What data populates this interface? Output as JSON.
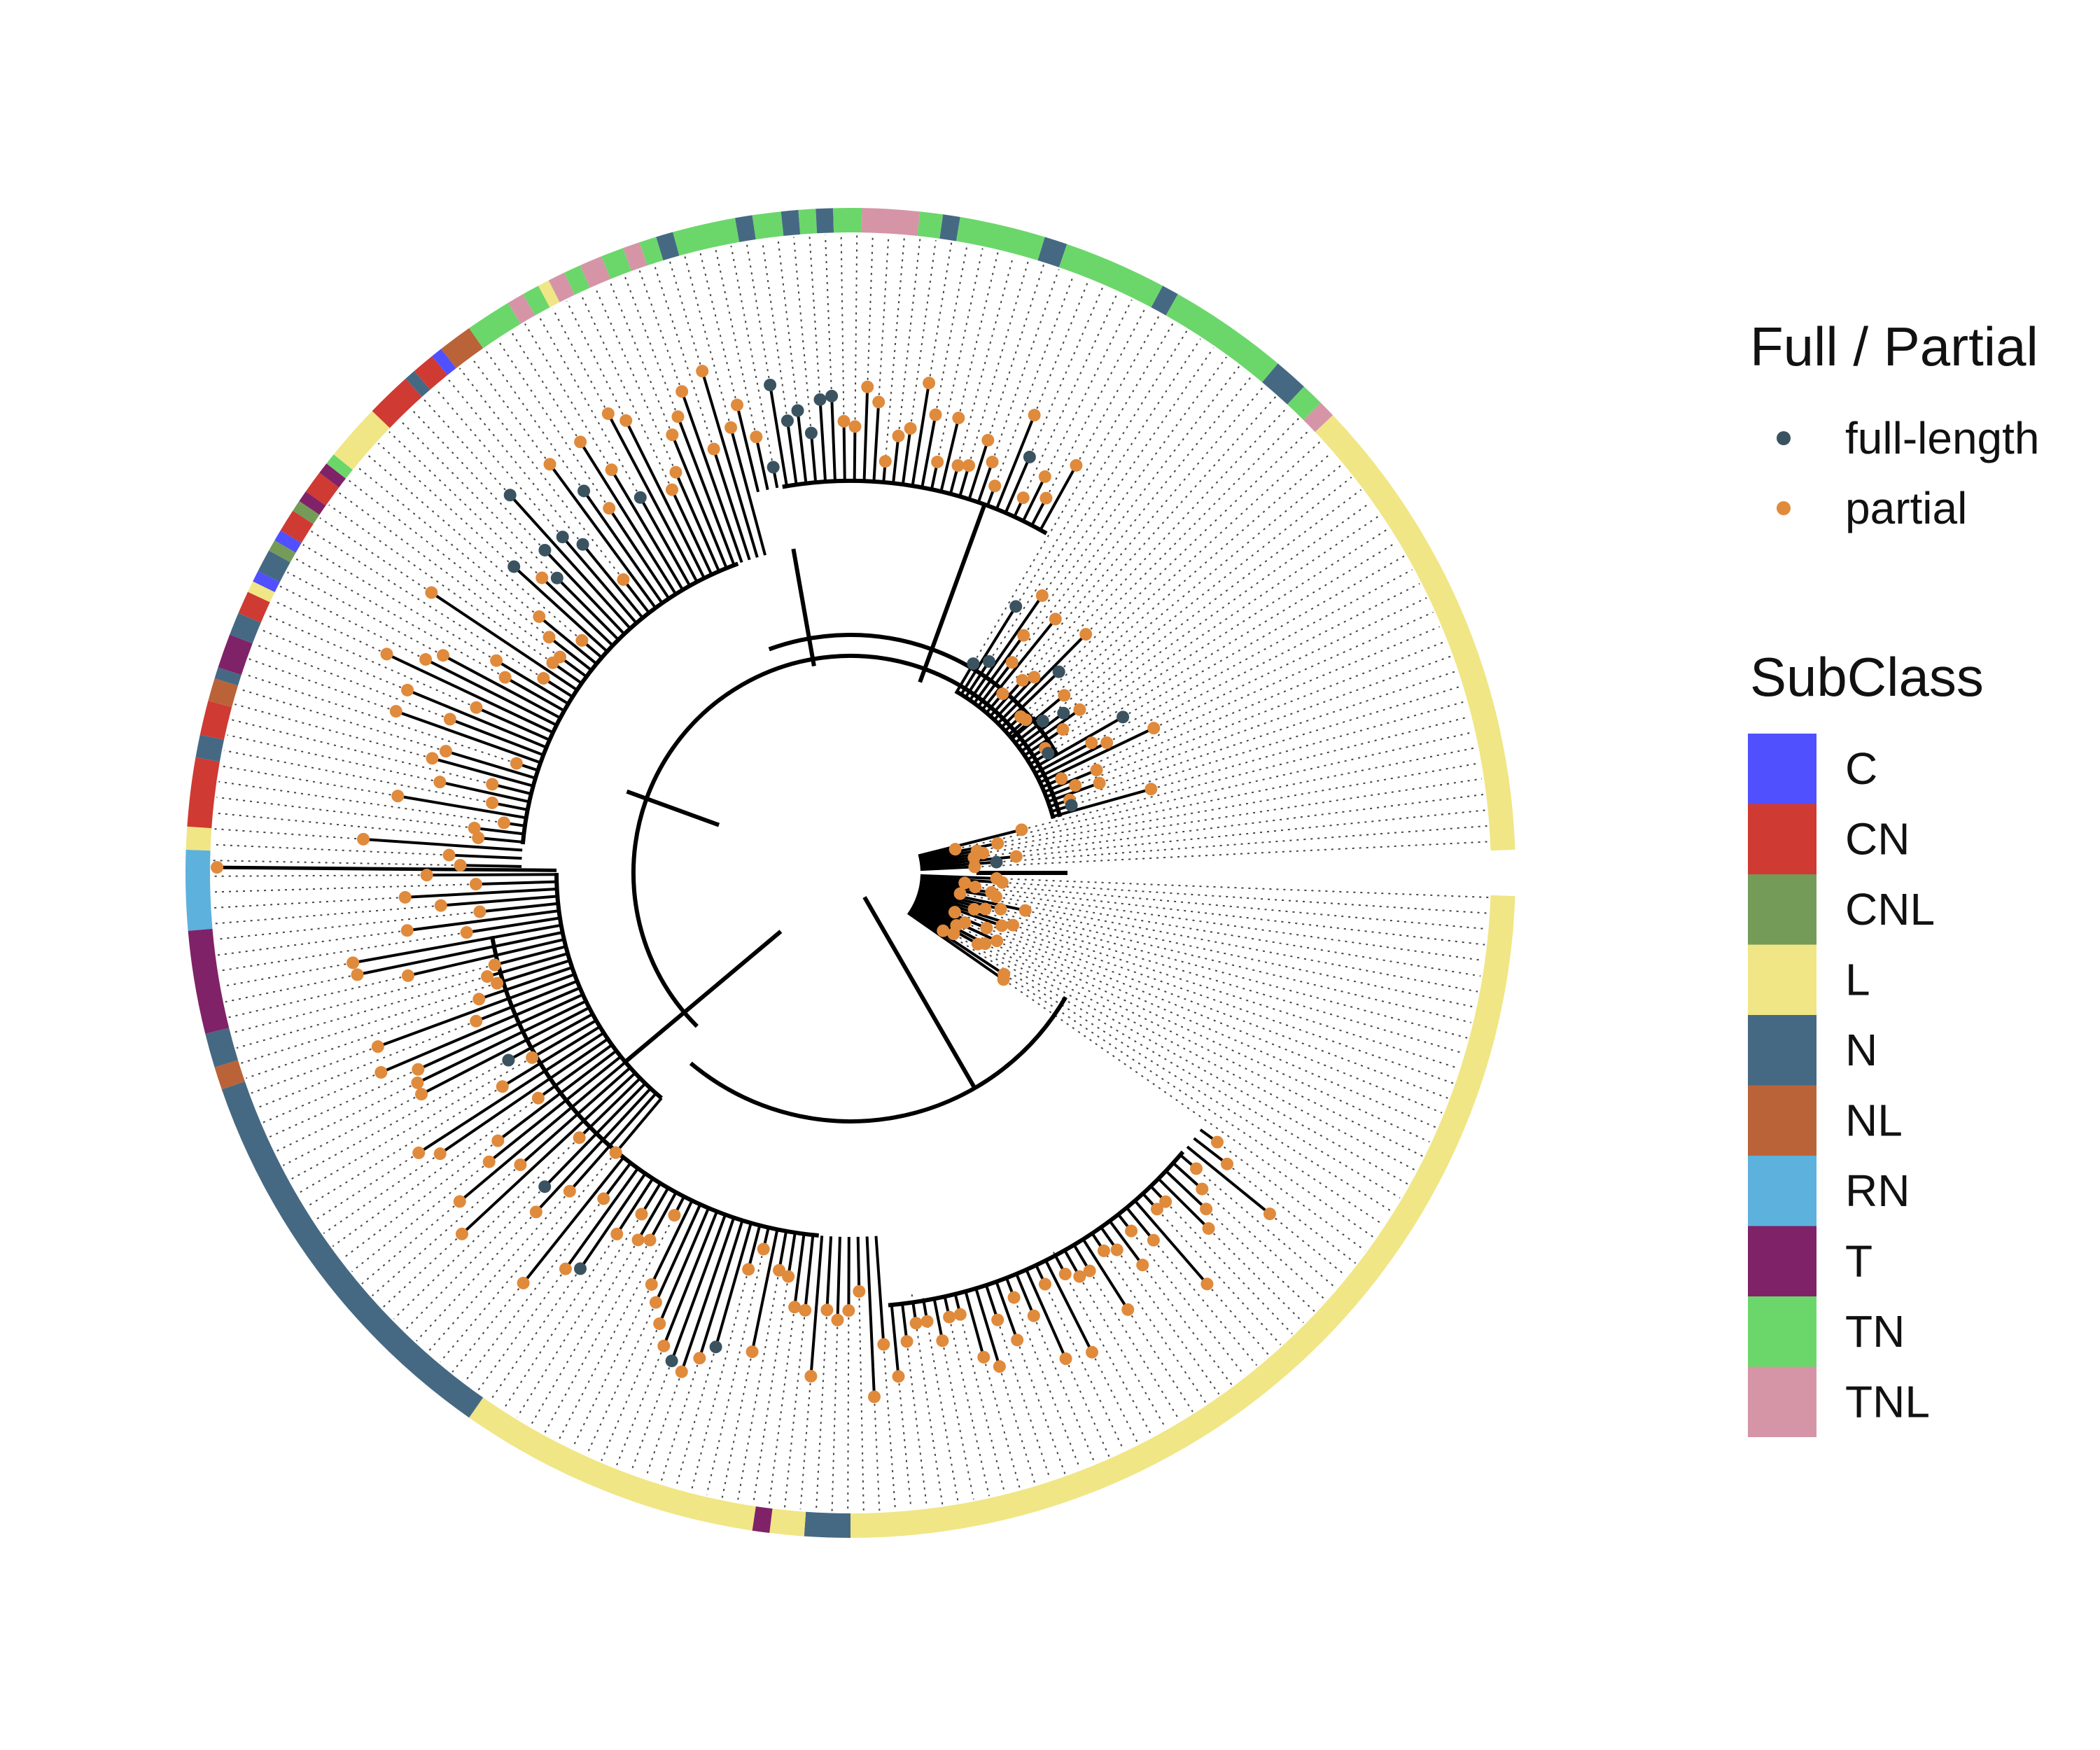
{
  "legend_full_partial": {
    "title": "Full / Partial",
    "items": [
      {
        "label": "full-length",
        "color": "#3b5360"
      },
      {
        "label": "partial",
        "color": "#e08a3c"
      }
    ]
  },
  "legend_subclass": {
    "title": "SubClass",
    "items": [
      {
        "label": "C",
        "color": "#5050ff"
      },
      {
        "label": "CN",
        "color": "#cf3a33"
      },
      {
        "label": "CNL",
        "color": "#749b58"
      },
      {
        "label": "L",
        "color": "#f0e685"
      },
      {
        "label": "N",
        "color": "#466983"
      },
      {
        "label": "NL",
        "color": "#ba6338"
      },
      {
        "label": "RN",
        "color": "#5db1dd"
      },
      {
        "label": "T",
        "color": "#802268"
      },
      {
        "label": "TN",
        "color": "#6bd76b"
      },
      {
        "label": "TNL",
        "color": "#d595a7"
      }
    ]
  },
  "ring_segments": [
    {
      "from": 2,
      "to": 90,
      "subclass": "L"
    },
    {
      "from": 90,
      "to": 94,
      "subclass": "N"
    },
    {
      "from": 94,
      "to": 97,
      "subclass": "L"
    },
    {
      "from": 97,
      "to": 98.5,
      "subclass": "T"
    },
    {
      "from": 98.5,
      "to": 125,
      "subclass": "L"
    },
    {
      "from": 125,
      "to": 161,
      "subclass": "N"
    },
    {
      "from": 161,
      "to": 163,
      "subclass": "NL"
    },
    {
      "from": 163,
      "to": 166,
      "subclass": "N"
    },
    {
      "from": 166,
      "to": 175,
      "subclass": "T"
    },
    {
      "from": 175,
      "to": 182,
      "subclass": "RN"
    },
    {
      "from": 182,
      "to": 184,
      "subclass": "L"
    },
    {
      "from": 184,
      "to": 190,
      "subclass": "CN"
    },
    {
      "from": 190,
      "to": 192,
      "subclass": "N"
    },
    {
      "from": 192,
      "to": 195,
      "subclass": "CN"
    },
    {
      "from": 195,
      "to": 197,
      "subclass": "NL"
    },
    {
      "from": 197,
      "to": 198,
      "subclass": "N"
    },
    {
      "from": 198,
      "to": 201,
      "subclass": "T"
    },
    {
      "from": 201,
      "to": 203,
      "subclass": "N"
    },
    {
      "from": 203,
      "to": 205,
      "subclass": "CN"
    },
    {
      "from": 205,
      "to": 206,
      "subclass": "L"
    },
    {
      "from": 206,
      "to": 207,
      "subclass": "C"
    },
    {
      "from": 207,
      "to": 209,
      "subclass": "N"
    },
    {
      "from": 209,
      "to": 210,
      "subclass": "CNL"
    },
    {
      "from": 210,
      "to": 211,
      "subclass": "C"
    },
    {
      "from": 211,
      "to": 213,
      "subclass": "CN"
    },
    {
      "from": 213,
      "to": 214,
      "subclass": "CNL"
    },
    {
      "from": 214,
      "to": 215,
      "subclass": "T"
    },
    {
      "from": 215,
      "to": 217,
      "subclass": "CN"
    },
    {
      "from": 217,
      "to": 218,
      "subclass": "T"
    },
    {
      "from": 218,
      "to": 219,
      "subclass": "TN"
    },
    {
      "from": 219,
      "to": 224,
      "subclass": "L"
    },
    {
      "from": 224,
      "to": 228,
      "subclass": "CN"
    },
    {
      "from": 228,
      "to": 229,
      "subclass": "N"
    },
    {
      "from": 229,
      "to": 231,
      "subclass": "CN"
    },
    {
      "from": 231,
      "to": 232,
      "subclass": "C"
    },
    {
      "from": 232,
      "to": 235,
      "subclass": "NL"
    },
    {
      "from": 235,
      "to": 239,
      "subclass": "TN"
    },
    {
      "from": 239,
      "to": 240.5,
      "subclass": "TNL"
    },
    {
      "from": 240.5,
      "to": 242,
      "subclass": "TN"
    },
    {
      "from": 242,
      "to": 243,
      "subclass": "L"
    },
    {
      "from": 243,
      "to": 244.5,
      "subclass": "TNL"
    },
    {
      "from": 244.5,
      "to": 246,
      "subclass": "TN"
    },
    {
      "from": 246,
      "to": 248,
      "subclass": "TNL"
    },
    {
      "from": 248,
      "to": 250,
      "subclass": "TN"
    },
    {
      "from": 250,
      "to": 251.5,
      "subclass": "TNL"
    },
    {
      "from": 251.5,
      "to": 253,
      "subclass": "TN"
    },
    {
      "from": 253,
      "to": 254.5,
      "subclass": "N"
    },
    {
      "from": 254.5,
      "to": 260,
      "subclass": "TN"
    },
    {
      "from": 260,
      "to": 261.5,
      "subclass": "N"
    },
    {
      "from": 261.5,
      "to": 264,
      "subclass": "TN"
    },
    {
      "from": 264,
      "to": 265.5,
      "subclass": "N"
    },
    {
      "from": 265.5,
      "to": 267,
      "subclass": "TN"
    },
    {
      "from": 267,
      "to": 268.5,
      "subclass": "N"
    },
    {
      "from": 268.5,
      "to": 271,
      "subclass": "TN"
    },
    {
      "from": 271,
      "to": 276,
      "subclass": "TNL"
    },
    {
      "from": 276,
      "to": 278,
      "subclass": "TN"
    },
    {
      "from": 278,
      "to": 279.5,
      "subclass": "N"
    },
    {
      "from": 279.5,
      "to": 287,
      "subclass": "TN"
    },
    {
      "from": 287,
      "to": 289,
      "subclass": "N"
    },
    {
      "from": 289,
      "to": 298,
      "subclass": "TN"
    },
    {
      "from": 298,
      "to": 299.5,
      "subclass": "N"
    },
    {
      "from": 299.5,
      "to": 310,
      "subclass": "TN"
    },
    {
      "from": 310,
      "to": 313,
      "subclass": "N"
    },
    {
      "from": 313,
      "to": 315,
      "subclass": "TN"
    },
    {
      "from": 315,
      "to": 316.5,
      "subclass": "TNL"
    },
    {
      "from": 316.5,
      "to": 358,
      "subclass": "L"
    }
  ]
}
